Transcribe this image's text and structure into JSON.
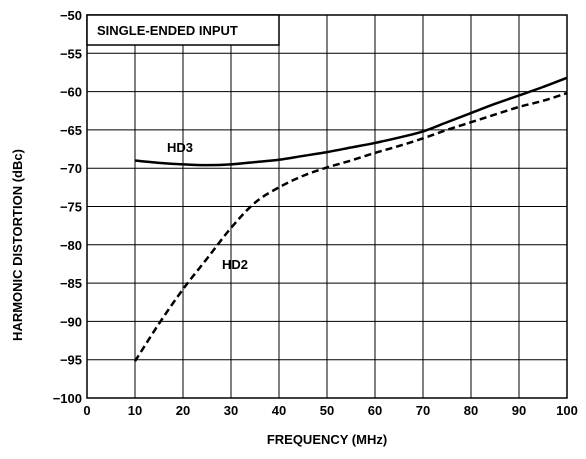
{
  "chart_data": {
    "type": "line",
    "title": "",
    "annotation": "SINGLE-ENDED INPUT",
    "xlabel": "FREQUENCY (MHz)",
    "ylabel": "HARMONIC DISTORTION (dBc)",
    "xlim": [
      0,
      100
    ],
    "ylim": [
      -100,
      -50
    ],
    "xticks": [
      0,
      10,
      20,
      30,
      40,
      50,
      60,
      70,
      80,
      90,
      100
    ],
    "yticks": [
      -100,
      -95,
      -90,
      -85,
      -80,
      -75,
      -70,
      -65,
      -60,
      -55,
      -50
    ],
    "grid": true,
    "series": [
      {
        "name": "HD3",
        "style": "solid",
        "color": "#000000",
        "x": [
          10,
          15,
          20,
          25,
          30,
          35,
          40,
          45,
          50,
          55,
          60,
          65,
          70,
          75,
          80,
          85,
          90,
          95,
          100
        ],
        "y": [
          -69.0,
          -69.3,
          -69.5,
          -69.6,
          -69.5,
          -69.2,
          -68.9,
          -68.4,
          -67.9,
          -67.3,
          -66.7,
          -66.0,
          -65.2,
          -64.0,
          -62.8,
          -61.6,
          -60.5,
          -59.4,
          -58.2
        ]
      },
      {
        "name": "HD2",
        "style": "dashed",
        "color": "#000000",
        "x": [
          10,
          15,
          20,
          25,
          30,
          35,
          40,
          45,
          50,
          55,
          60,
          65,
          70,
          75,
          80,
          85,
          90,
          95,
          100
        ],
        "y": [
          -95.2,
          -90.3,
          -85.8,
          -81.8,
          -77.8,
          -74.5,
          -72.5,
          -71.0,
          -69.9,
          -69.0,
          -68.0,
          -67.1,
          -66.1,
          -65.0,
          -64.0,
          -63.0,
          -62.0,
          -61.2,
          -60.2
        ]
      }
    ]
  }
}
